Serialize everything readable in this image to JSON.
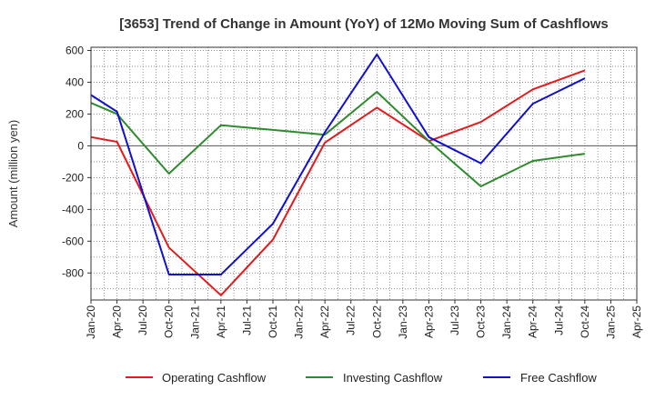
{
  "chart_data": {
    "type": "line",
    "title": "[3653]  Trend of Change in Amount (YoY) of 12Mo Moving Sum of Cashflows",
    "xlabel": "",
    "ylabel": "Amount (million yen)",
    "ylim": [
      -970,
      620
    ],
    "yticks": [
      600,
      400,
      200,
      0,
      -200,
      -400,
      -600,
      -800
    ],
    "ytick_labels": [
      "600",
      "400",
      "200",
      "0",
      "-200",
      "-400",
      "-600",
      "-800"
    ],
    "categories": [
      "Jan-20",
      "Apr-20",
      "Jul-20",
      "Oct-20",
      "Jan-21",
      "Apr-21",
      "Jul-21",
      "Oct-21",
      "Jan-22",
      "Apr-22",
      "Jul-22",
      "Oct-22",
      "Jan-23",
      "Apr-23",
      "Jul-23",
      "Oct-23",
      "Jan-24",
      "Apr-24",
      "Jul-24",
      "Oct-24",
      "Jan-25",
      "Apr-25"
    ],
    "series": [
      {
        "name": "Operating Cashflow",
        "color": "#e41a1c",
        "values": [
          55,
          25,
          null,
          -640,
          null,
          -940,
          null,
          -590,
          null,
          20,
          null,
          240,
          null,
          30,
          null,
          150,
          null,
          355,
          null,
          475,
          null,
          null
        ]
      },
      {
        "name": "Investing Cashflow",
        "color": "#2e8b2e",
        "values": [
          270,
          200,
          null,
          -175,
          null,
          130,
          null,
          100,
          null,
          70,
          null,
          340,
          null,
          30,
          null,
          -255,
          null,
          -95,
          null,
          -50,
          null,
          null
        ]
      },
      {
        "name": "Free Cashflow",
        "color": "#1010d0",
        "values": [
          320,
          215,
          null,
          -810,
          null,
          -810,
          null,
          -490,
          null,
          85,
          null,
          575,
          null,
          55,
          null,
          -110,
          null,
          265,
          null,
          425,
          null,
          null
        ]
      }
    ],
    "grid": true,
    "zero_line": true,
    "legend_position": "bottom"
  }
}
